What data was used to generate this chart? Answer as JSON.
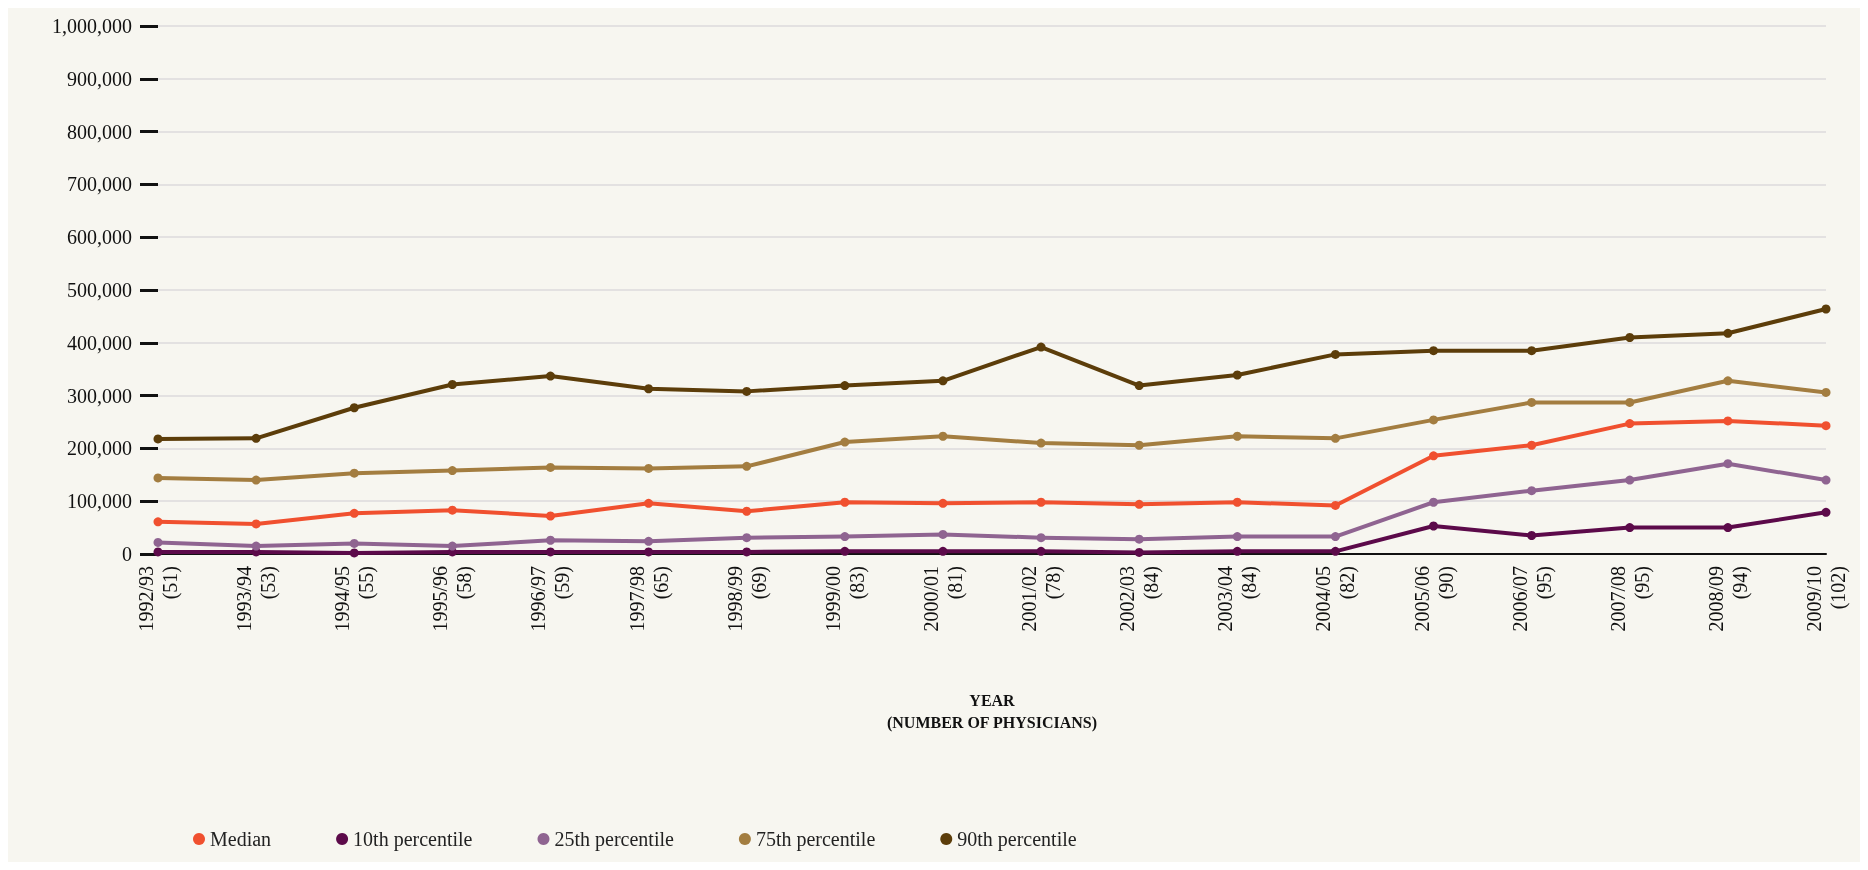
{
  "chart_data": {
    "type": "line",
    "xlabel": "YEAR\n(NUMBER OF PHYSICIANS)",
    "categories": [
      "1992/93\n(51)",
      "1993/94\n(53)",
      "1994/95\n(55)",
      "1995/96\n(58)",
      "1996/97\n(59)",
      "1997/98\n(65)",
      "1998/99\n(69)",
      "1999/00\n(83)",
      "2000/01\n(81)",
      "2001/02\n(78)",
      "2002/03\n(84)",
      "2003/04\n(84)",
      "2004/05\n(82)",
      "2005/06\n(90)",
      "2006/07\n(95)",
      "2007/08\n(95)",
      "2008/09\n(94)",
      "2009/10\n(102)"
    ],
    "series": [
      {
        "name": "Median",
        "color": "#f0502f",
        "values": [
          61000,
          57000,
          77000,
          83000,
          72000,
          96000,
          81000,
          98000,
          96000,
          98000,
          94000,
          98000,
          92000,
          186000,
          206000,
          247000,
          252000,
          243000
        ]
      },
      {
        "name": "10th percentile",
        "color": "#5c0a4a",
        "values": [
          4000,
          4000,
          2000,
          4000,
          4000,
          4000,
          4000,
          5000,
          5000,
          5000,
          3000,
          5000,
          5000,
          53000,
          35000,
          50000,
          50000,
          79000
        ]
      },
      {
        "name": "25th percentile",
        "color": "#8f6491",
        "values": [
          22000,
          15000,
          20000,
          15000,
          26000,
          24000,
          31000,
          33000,
          37000,
          31000,
          28000,
          33000,
          33000,
          98000,
          120000,
          140000,
          171000,
          140000
        ]
      },
      {
        "name": "75th percentile",
        "color": "#a37d40",
        "values": [
          144000,
          140000,
          153000,
          158000,
          164000,
          162000,
          166000,
          212000,
          223000,
          210000,
          206000,
          223000,
          219000,
          254000,
          287000,
          287000,
          328000,
          306000
        ]
      },
      {
        "name": "90th percentile",
        "color": "#5c3d0a",
        "values": [
          218000,
          219000,
          277000,
          321000,
          337000,
          313000,
          308000,
          319000,
          328000,
          392000,
          319000,
          339000,
          378000,
          385000,
          385000,
          410000,
          418000,
          464000
        ]
      }
    ],
    "ylim": [
      0,
      1000000
    ],
    "yticks": [
      0,
      {
        "value": 100000,
        "label": "100,000"
      },
      {
        "value": 200000,
        "label": "200,000"
      },
      {
        "value": 300000,
        "label": "300,000"
      },
      {
        "value": 400000,
        "label": "400,000"
      },
      {
        "value": 500000,
        "label": "500,000"
      },
      {
        "value": 600000,
        "label": "600,000"
      },
      {
        "value": 700000,
        "label": "700,000"
      },
      {
        "value": 800000,
        "label": "800,000"
      },
      {
        "value": 900000,
        "label": "900,000"
      },
      {
        "value": 1000000,
        "label": "1,000,000"
      }
    ],
    "grid": "y",
    "legend": "bottom left",
    "marker": "circle",
    "line_style": "solid"
  }
}
